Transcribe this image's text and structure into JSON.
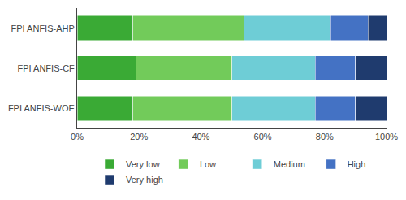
{
  "chart_data": {
    "type": "bar",
    "orientation": "horizontal",
    "stacked": true,
    "categories": [
      "FPI ANFIS-AHP",
      "FPI ANFIS-CF",
      "FPI ANFIS-WOE"
    ],
    "series": [
      {
        "name": "Very low",
        "color": "#3aaa35",
        "values": [
          18,
          19,
          18
        ]
      },
      {
        "name": "Low",
        "color": "#72cb5a",
        "values": [
          36,
          31,
          32
        ]
      },
      {
        "name": "Medium",
        "color": "#6ecdd6",
        "values": [
          28,
          27,
          27
        ]
      },
      {
        "name": "High",
        "color": "#4472c4",
        "values": [
          12,
          13,
          13
        ]
      },
      {
        "name": "Very high",
        "color": "#1f3b6e",
        "values": [
          6,
          10,
          10
        ]
      }
    ],
    "xlim": [
      0,
      100
    ],
    "xticks": [
      {
        "value": 0,
        "label": "0%"
      },
      {
        "value": 20,
        "label": "20%"
      },
      {
        "value": 40,
        "label": "40%"
      },
      {
        "value": 60,
        "label": "60%"
      },
      {
        "value": 80,
        "label": "80%"
      },
      {
        "value": 100,
        "label": "100%"
      }
    ],
    "grid": false,
    "legend": "bottom"
  }
}
